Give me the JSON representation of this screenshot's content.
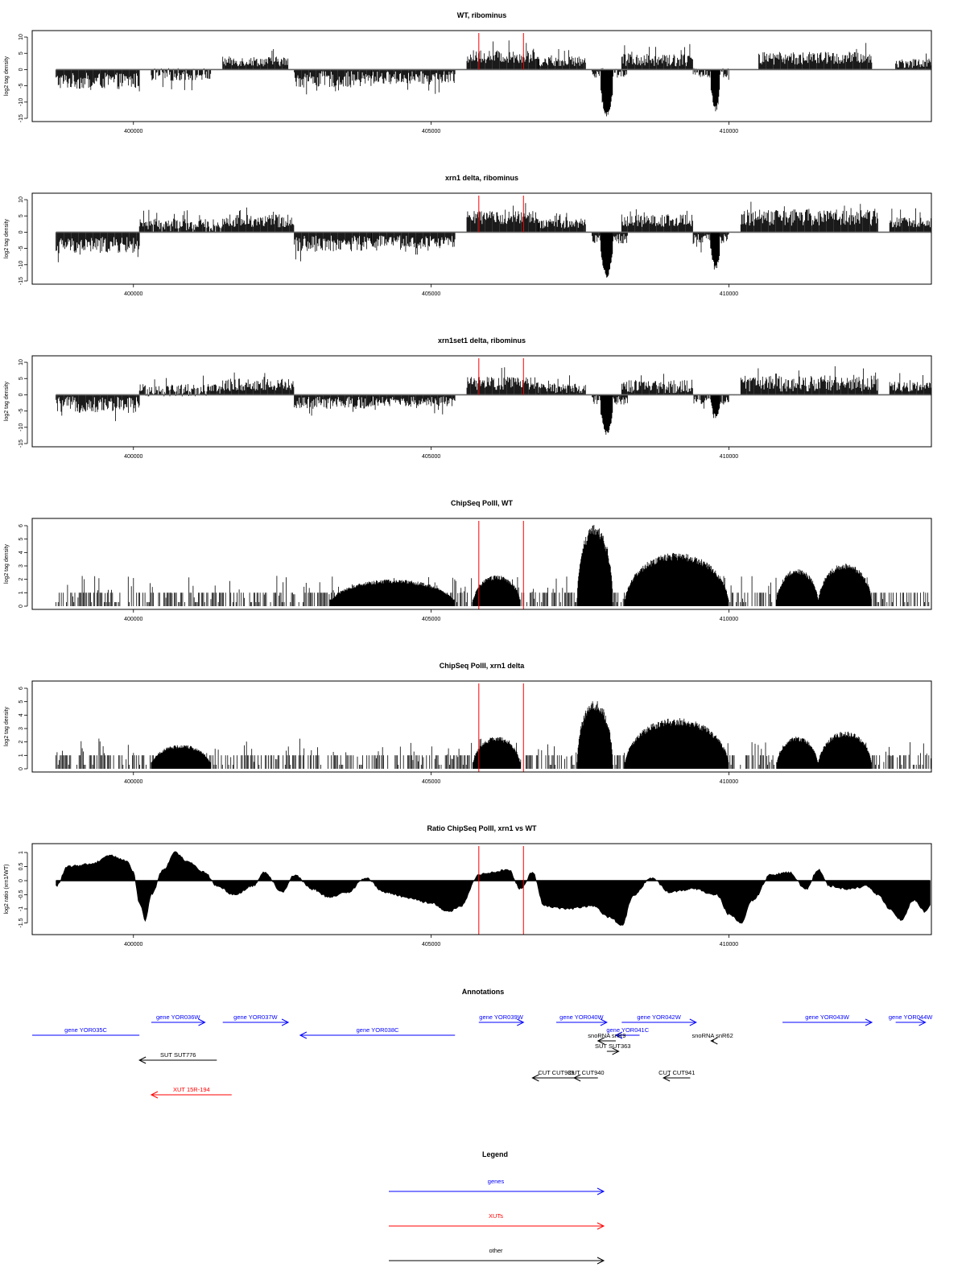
{
  "colors": {
    "genes": "#0000ff",
    "xuts": "#ff0000",
    "other": "#000000",
    "markers": "#ff0000",
    "signal": "#000000"
  },
  "chart_data": [
    {
      "type": "bar",
      "title": "WT, ribominus",
      "ylabel": "log2 tag density",
      "xlim": [
        398300,
        413400
      ],
      "ylim": [
        -15,
        11
      ],
      "yticks": [
        10,
        5,
        0,
        -5,
        -10,
        -15
      ],
      "xticks": [
        400000,
        405000,
        410000
      ],
      "markers": [
        405800,
        406550
      ],
      "segments": [
        {
          "x0": 398700,
          "x1": 400100,
          "level": -3.5,
          "amp": 2.5
        },
        {
          "x0": 400300,
          "x1": 401300,
          "level": -1.5,
          "amp": 2.0
        },
        {
          "x0": 401500,
          "x1": 402600,
          "level": 2.5,
          "amp": 1.5
        },
        {
          "x0": 402700,
          "x1": 404000,
          "level": -3.0,
          "amp": 2.5
        },
        {
          "x0": 404000,
          "x1": 405400,
          "level": -2.5,
          "amp": 2.0
        },
        {
          "x0": 405600,
          "x1": 406800,
          "level": 4.0,
          "amp": 2.0
        },
        {
          "x0": 406800,
          "x1": 407600,
          "level": 2.5,
          "amp": 1.5
        },
        {
          "x0": 407700,
          "x1": 408300,
          "level": -1.0,
          "amp": 1.5
        },
        {
          "x0": 408200,
          "x1": 409400,
          "level": 3.0,
          "amp": 2.0
        },
        {
          "x0": 409400,
          "x1": 410000,
          "level": -1.0,
          "amp": 1.5
        },
        {
          "x0": 410500,
          "x1": 412400,
          "level": 3.5,
          "amp": 2.0
        },
        {
          "x0": 412800,
          "x1": 413400,
          "level": 2.0,
          "amp": 1.5
        }
      ],
      "dips": [
        {
          "x0": 407850,
          "x1": 408050,
          "depth": -14
        },
        {
          "x0": 409700,
          "x1": 409850,
          "depth": -12
        }
      ]
    },
    {
      "type": "bar",
      "title": "xrn1 delta, ribominus",
      "ylabel": "log2 tag density",
      "xlim": [
        398300,
        413400
      ],
      "ylim": [
        -15,
        11
      ],
      "yticks": [
        10,
        5,
        0,
        -5,
        -10,
        -15
      ],
      "xticks": [
        400000,
        405000,
        410000
      ],
      "markers": [
        405800,
        406550
      ],
      "segments": [
        {
          "x0": 398700,
          "x1": 400100,
          "level": -4.0,
          "amp": 2.5
        },
        {
          "x0": 400100,
          "x1": 401500,
          "level": 2.0,
          "amp": 2.0
        },
        {
          "x0": 401500,
          "x1": 402700,
          "level": 3.5,
          "amp": 2.0
        },
        {
          "x0": 402700,
          "x1": 404000,
          "level": -3.5,
          "amp": 2.5
        },
        {
          "x0": 404000,
          "x1": 405400,
          "level": -3.0,
          "amp": 2.0
        },
        {
          "x0": 405600,
          "x1": 406800,
          "level": 4.5,
          "amp": 2.0
        },
        {
          "x0": 406800,
          "x1": 407600,
          "level": 2.5,
          "amp": 1.5
        },
        {
          "x0": 407700,
          "x1": 408300,
          "level": -2.0,
          "amp": 1.5
        },
        {
          "x0": 408200,
          "x1": 409400,
          "level": 3.5,
          "amp": 2.0
        },
        {
          "x0": 409400,
          "x1": 410000,
          "level": -2.0,
          "amp": 1.5
        },
        {
          "x0": 410200,
          "x1": 412500,
          "level": 4.5,
          "amp": 2.5
        },
        {
          "x0": 412700,
          "x1": 413400,
          "level": 3.0,
          "amp": 1.5
        }
      ],
      "dips": [
        {
          "x0": 407850,
          "x1": 408050,
          "depth": -13
        },
        {
          "x0": 409700,
          "x1": 409850,
          "depth": -11
        }
      ]
    },
    {
      "type": "bar",
      "title": "xrn1set1 delta, ribominus",
      "ylabel": "log2 tag density",
      "xlim": [
        398300,
        413400
      ],
      "ylim": [
        -15,
        11
      ],
      "yticks": [
        10,
        5,
        0,
        -5,
        -10,
        -15
      ],
      "xticks": [
        400000,
        405000,
        410000
      ],
      "markers": [
        405800,
        406550
      ],
      "segments": [
        {
          "x0": 398700,
          "x1": 400100,
          "level": -3.0,
          "amp": 2.5
        },
        {
          "x0": 400100,
          "x1": 401500,
          "level": 1.5,
          "amp": 2.0
        },
        {
          "x0": 401500,
          "x1": 402700,
          "level": 3.0,
          "amp": 2.0
        },
        {
          "x0": 402700,
          "x1": 404000,
          "level": -2.5,
          "amp": 2.0
        },
        {
          "x0": 404000,
          "x1": 405400,
          "level": -2.0,
          "amp": 1.5
        },
        {
          "x0": 405600,
          "x1": 406800,
          "level": 3.5,
          "amp": 2.0
        },
        {
          "x0": 406800,
          "x1": 407600,
          "level": 2.0,
          "amp": 1.5
        },
        {
          "x0": 407700,
          "x1": 408300,
          "level": -1.5,
          "amp": 1.5
        },
        {
          "x0": 408200,
          "x1": 409400,
          "level": 2.5,
          "amp": 2.0
        },
        {
          "x0": 409400,
          "x1": 410000,
          "level": -1.5,
          "amp": 1.5
        },
        {
          "x0": 410200,
          "x1": 412500,
          "level": 3.5,
          "amp": 2.5
        },
        {
          "x0": 412700,
          "x1": 413400,
          "level": 2.5,
          "amp": 1.5
        }
      ],
      "dips": [
        {
          "x0": 407850,
          "x1": 408050,
          "depth": -12
        },
        {
          "x0": 409700,
          "x1": 409850,
          "depth": -7
        }
      ]
    },
    {
      "type": "area",
      "title": "ChipSeq PolII, WT",
      "ylabel": "log2 tag density",
      "xlim": [
        398300,
        413400
      ],
      "ylim": [
        0,
        6.3
      ],
      "yticks": [
        0,
        1,
        2,
        3,
        4,
        5,
        6
      ],
      "xticks": [
        400000,
        405000,
        410000
      ],
      "markers": [
        405800,
        406550
      ],
      "base_range": [
        398700,
        413400
      ],
      "peaks": [
        {
          "x0": 407450,
          "x1": 408050,
          "h": 6.1
        },
        {
          "x0": 408250,
          "x1": 410000,
          "h": 4.0
        },
        {
          "x0": 410800,
          "x1": 411500,
          "h": 2.8
        },
        {
          "x0": 411500,
          "x1": 412400,
          "h": 3.2
        },
        {
          "x0": 403300,
          "x1": 405400,
          "h": 2.0
        },
        {
          "x0": 405700,
          "x1": 406500,
          "h": 2.3
        }
      ]
    },
    {
      "type": "area",
      "title": "ChipSeq PolII, xrn1 delta",
      "ylabel": "log2 tag density",
      "xlim": [
        398300,
        413400
      ],
      "ylim": [
        0,
        6.3
      ],
      "yticks": [
        0,
        1,
        2,
        3,
        4,
        5,
        6
      ],
      "xticks": [
        400000,
        405000,
        410000
      ],
      "markers": [
        405800,
        406550
      ],
      "base_range": [
        398700,
        413400
      ],
      "peaks": [
        {
          "x0": 407450,
          "x1": 408050,
          "h": 5.1
        },
        {
          "x0": 408250,
          "x1": 410000,
          "h": 3.8
        },
        {
          "x0": 410800,
          "x1": 411500,
          "h": 2.4
        },
        {
          "x0": 411500,
          "x1": 412400,
          "h": 2.8
        },
        {
          "x0": 400300,
          "x1": 401300,
          "h": 1.8
        },
        {
          "x0": 405700,
          "x1": 406500,
          "h": 2.4
        }
      ]
    },
    {
      "type": "area",
      "title": "Ratio ChipSeq PolII, xrn1 vs WT",
      "ylabel": "log2 ratio (xrn1/WT)",
      "xlim": [
        398300,
        413400
      ],
      "ylim": [
        -1.8,
        1.2
      ],
      "yticks": [
        1.0,
        0.5,
        0.0,
        -0.5,
        -1.0,
        -1.5
      ],
      "xticks": [
        400000,
        405000,
        410000
      ],
      "markers": [
        405800,
        406550
      ],
      "curve": [
        [
          398700,
          -0.2
        ],
        [
          398900,
          0.5
        ],
        [
          399300,
          0.6
        ],
        [
          399600,
          0.9
        ],
        [
          399900,
          0.7
        ],
        [
          400000,
          0.3
        ],
        [
          400100,
          -0.8
        ],
        [
          400200,
          -1.4
        ],
        [
          400300,
          -0.5
        ],
        [
          400500,
          0.4
        ],
        [
          400700,
          1.0
        ],
        [
          400900,
          0.7
        ],
        [
          401200,
          0.3
        ],
        [
          401400,
          -0.2
        ],
        [
          401700,
          -0.5
        ],
        [
          402000,
          -0.2
        ],
        [
          402200,
          0.3
        ],
        [
          402500,
          -0.4
        ],
        [
          402700,
          0.2
        ],
        [
          403000,
          -0.3
        ],
        [
          403300,
          -0.6
        ],
        [
          403600,
          -0.4
        ],
        [
          403900,
          0.1
        ],
        [
          404200,
          -0.4
        ],
        [
          404600,
          -0.6
        ],
        [
          405000,
          -0.8
        ],
        [
          405300,
          -1.1
        ],
        [
          405500,
          -0.9
        ],
        [
          405800,
          0.2
        ],
        [
          406000,
          0.3
        ],
        [
          406300,
          0.4
        ],
        [
          406500,
          -0.3
        ],
        [
          406700,
          0.3
        ],
        [
          406900,
          -0.9
        ],
        [
          407300,
          -1.0
        ],
        [
          407700,
          -0.9
        ],
        [
          408000,
          -1.3
        ],
        [
          408200,
          -1.6
        ],
        [
          408400,
          -0.5
        ],
        [
          408700,
          0.1
        ],
        [
          409000,
          -0.4
        ],
        [
          409400,
          -0.3
        ],
        [
          409800,
          -0.5
        ],
        [
          410000,
          -1.2
        ],
        [
          410200,
          -1.5
        ],
        [
          410400,
          -0.7
        ],
        [
          410700,
          0.2
        ],
        [
          411000,
          0.3
        ],
        [
          411300,
          -0.3
        ],
        [
          411500,
          0.4
        ],
        [
          411700,
          -0.2
        ],
        [
          412000,
          -0.3
        ],
        [
          412300,
          -0.2
        ],
        [
          412500,
          -0.5
        ],
        [
          412700,
          -1.0
        ],
        [
          412900,
          -1.4
        ],
        [
          413100,
          -0.7
        ],
        [
          413300,
          -1.1
        ],
        [
          413400,
          -0.8
        ]
      ]
    }
  ],
  "annotations": {
    "title": "Annotations",
    "xlim": [
      398300,
      413400
    ],
    "items": [
      {
        "label": "gene YOR035C",
        "x0": 398000,
        "x1": 400100,
        "row": 1,
        "dir": "none",
        "kind": "genes"
      },
      {
        "label": "gene YOR036W",
        "x0": 400300,
        "x1": 401200,
        "row": 0,
        "dir": "right",
        "kind": "genes"
      },
      {
        "label": "gene YOR037W",
        "x0": 401500,
        "x1": 402600,
        "row": 0,
        "dir": "right",
        "kind": "genes"
      },
      {
        "label": "gene YOR038C",
        "x0": 402800,
        "x1": 405400,
        "row": 1,
        "dir": "left",
        "kind": "genes"
      },
      {
        "label": "gene YOR039W",
        "x0": 405800,
        "x1": 406550,
        "row": 0,
        "dir": "right",
        "kind": "genes"
      },
      {
        "label": "gene YOR040W",
        "x0": 407100,
        "x1": 407950,
        "row": 0,
        "dir": "right",
        "kind": "genes"
      },
      {
        "label": "gene YOR041C",
        "x0": 408100,
        "x1": 408500,
        "row": 1,
        "dir": "left",
        "kind": "genes"
      },
      {
        "label": "gene YOR042W",
        "x0": 408200,
        "x1": 409450,
        "row": 0,
        "dir": "right",
        "kind": "genes"
      },
      {
        "label": "gene YOR043W",
        "x0": 410900,
        "x1": 412400,
        "row": 0,
        "dir": "right",
        "kind": "genes"
      },
      {
        "label": "gene YOR044W",
        "x0": 412800,
        "x1": 413300,
        "row": 0,
        "dir": "right",
        "kind": "genes"
      },
      {
        "label": "snoRNA snR9",
        "x0": 407800,
        "x1": 408100,
        "row": 2,
        "dir": "left",
        "kind": "other"
      },
      {
        "label": "SUT SUT363",
        "x0": 407950,
        "x1": 408150,
        "row": 3,
        "dir": "right",
        "kind": "other"
      },
      {
        "label": "snoRNA snR62",
        "x0": 409700,
        "x1": 409750,
        "row": 2,
        "dir": "left",
        "kind": "other"
      },
      {
        "label": "SUT SUT776",
        "x0": 400100,
        "x1": 401400,
        "row": 4,
        "dir": "left",
        "kind": "other"
      },
      {
        "label": "CUT CUT939",
        "x0": 406700,
        "x1": 407500,
        "row": 5,
        "dir": "left",
        "kind": "other"
      },
      {
        "label": "CUT CUT940",
        "x0": 407400,
        "x1": 407800,
        "row": 5,
        "dir": "left",
        "kind": "other"
      },
      {
        "label": "CUT CUT941",
        "x0": 408900,
        "x1": 409350,
        "row": 5,
        "dir": "left",
        "kind": "other"
      },
      {
        "label": "XUT 15R-194",
        "x0": 400300,
        "x1": 401650,
        "row": 6,
        "dir": "left",
        "kind": "xuts"
      }
    ]
  },
  "legend": {
    "title": "Legend",
    "items": [
      {
        "label": "genes",
        "kind": "genes"
      },
      {
        "label": "XUTs",
        "kind": "xuts"
      },
      {
        "label": "other",
        "kind": "other"
      }
    ]
  }
}
